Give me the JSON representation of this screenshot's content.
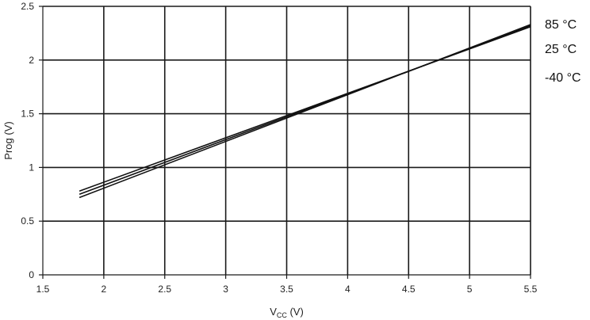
{
  "chart_data": {
    "type": "line",
    "title": "",
    "xlabel_main": "V",
    "xlabel_sub": "CC",
    "xlabel_unit": " (V)",
    "ylabel": "Prog (V)",
    "xlim": [
      1.5,
      5.5
    ],
    "ylim": [
      0,
      2.5
    ],
    "x_ticks": [
      "1.5",
      "2",
      "2.5",
      "3",
      "3.5",
      "4",
      "4.5",
      "5",
      "5.5"
    ],
    "y_ticks": [
      "0",
      "0.5",
      "1",
      "1.5",
      "2",
      "2.5"
    ],
    "grid": true,
    "legend_position": "right",
    "series": [
      {
        "name": "85 °C",
        "x": [
          1.8,
          5.5
        ],
        "y": [
          0.78,
          2.31
        ]
      },
      {
        "name": "25 °C",
        "x": [
          1.8,
          5.5
        ],
        "y": [
          0.75,
          2.32
        ]
      },
      {
        "name": "-40 °C",
        "x": [
          1.8,
          5.5
        ],
        "y": [
          0.72,
          2.33
        ]
      }
    ]
  }
}
